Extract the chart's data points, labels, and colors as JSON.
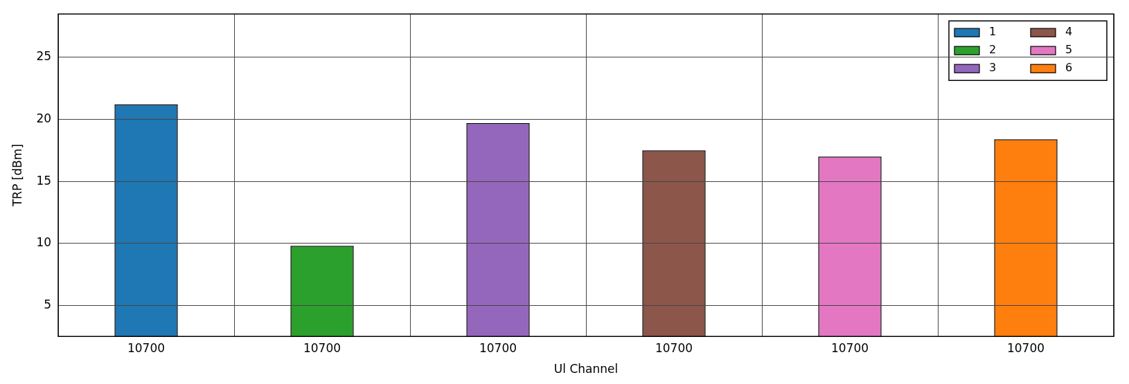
{
  "chart_data": {
    "type": "bar",
    "xlabel": "Ul Channel",
    "ylabel": "TRP [dBm]",
    "categories": [
      "10700",
      "10700",
      "10700",
      "10700",
      "10700",
      "10700"
    ],
    "series": [
      {
        "name": "1",
        "color": "#1f77b4",
        "values": [
          21.2,
          null,
          null,
          null,
          null,
          null
        ]
      },
      {
        "name": "2",
        "color": "#2ca02c",
        "values": [
          null,
          9.8,
          null,
          null,
          null,
          null
        ]
      },
      {
        "name": "3",
        "color": "#9467bd",
        "values": [
          null,
          null,
          19.7,
          null,
          null,
          null
        ]
      },
      {
        "name": "4",
        "color": "#8c564b",
        "values": [
          null,
          null,
          null,
          17.5,
          null,
          null
        ]
      },
      {
        "name": "5",
        "color": "#e377c2",
        "values": [
          null,
          null,
          null,
          null,
          17.0,
          null
        ]
      },
      {
        "name": "6",
        "color": "#ff7f0e",
        "values": [
          null,
          null,
          null,
          null,
          null,
          18.4
        ]
      }
    ],
    "ylim": [
      2.5,
      28.5
    ],
    "yticks": [
      5,
      10,
      15,
      20,
      25
    ],
    "grid": true,
    "legend": "top right"
  }
}
